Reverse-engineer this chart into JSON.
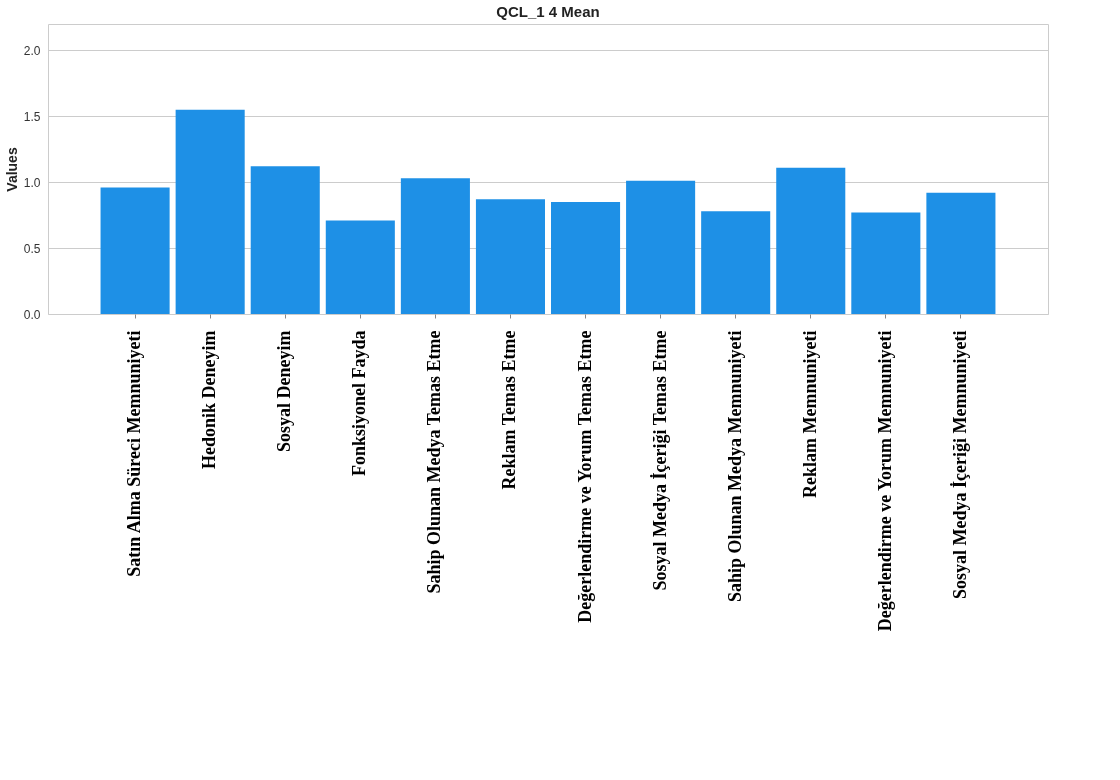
{
  "chart_data": {
    "type": "bar",
    "title": "QCL_1 4 Mean",
    "ylabel": "Values",
    "categories": [
      "Satın Alma Süreci Memnuniyeti",
      "Hedonik Deneyim",
      "Sosyal Deneyim",
      "Fonksiyonel Fayda",
      "Sahip Olunan Medya Temas Etme",
      "Reklam Temas Etme",
      "Değerlendirme ve Yorum Temas Etme",
      "Sosyal Medya İçeriği Temas Etme",
      "Sahip Olunan Medya Memnuniyeti",
      "Reklam Memnuniyeti",
      "Değerlendirme ve Yorum Memnuniyeti",
      "Sosyal Medya İçeriği Memnuniyeti"
    ],
    "values": [
      0.96,
      1.55,
      1.12,
      0.71,
      1.03,
      0.87,
      0.85,
      1.01,
      0.78,
      1.11,
      0.77,
      0.92
    ],
    "color": "#1e90e6",
    "ylim": [
      0,
      2.2
    ],
    "yticks": [
      {
        "value": 0,
        "label": "0.0"
      },
      {
        "value": 0.5,
        "label": "0.5"
      },
      {
        "value": 1,
        "label": "1.0"
      },
      {
        "value": 1.5,
        "label": "1.5"
      },
      {
        "value": 2,
        "label": "2.0"
      }
    ],
    "grid": "y"
  }
}
